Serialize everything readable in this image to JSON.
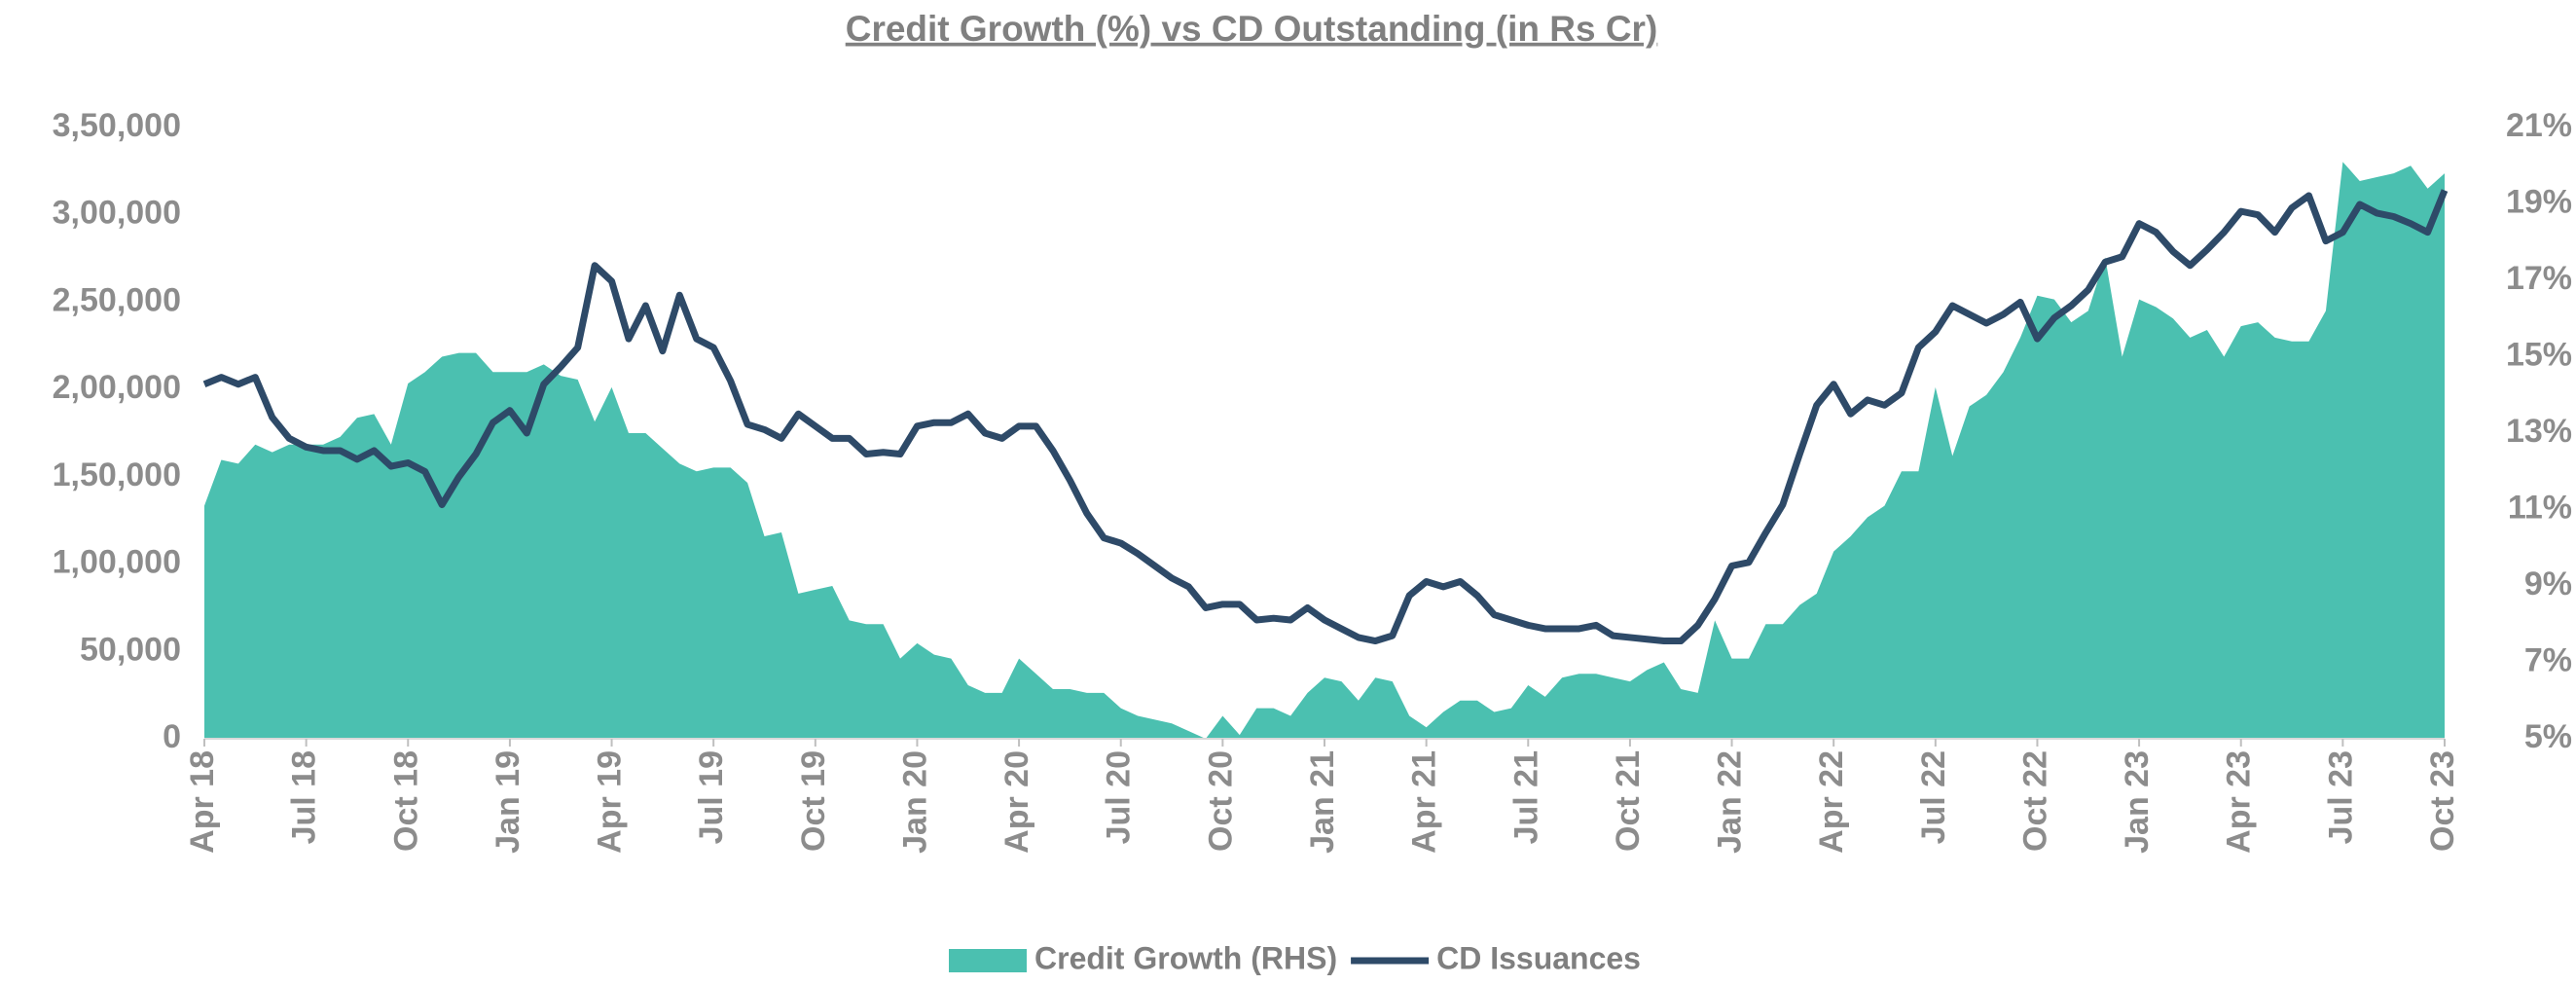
{
  "chart_data": {
    "type": "combo",
    "title": "Credit Growth (%) vs CD Outstanding (in Rs Cr)",
    "categories": [
      "Apr 18",
      null,
      null,
      null,
      null,
      null,
      "Jul 18",
      null,
      null,
      null,
      null,
      null,
      "Oct 18",
      null,
      null,
      null,
      null,
      null,
      "Jan 19",
      null,
      null,
      null,
      null,
      null,
      "Apr 19",
      null,
      null,
      null,
      null,
      null,
      "Jul 19",
      null,
      null,
      null,
      null,
      null,
      "Oct 19",
      null,
      null,
      null,
      null,
      null,
      "Jan 20",
      null,
      null,
      null,
      null,
      null,
      "Apr 20",
      null,
      null,
      null,
      null,
      null,
      "Jul 20",
      null,
      null,
      null,
      null,
      null,
      "Oct 20",
      null,
      null,
      null,
      null,
      null,
      "Jan 21",
      null,
      null,
      null,
      null,
      null,
      "Apr 21",
      null,
      null,
      null,
      null,
      null,
      "Jul 21",
      null,
      null,
      null,
      null,
      null,
      "Oct 21",
      null,
      null,
      null,
      null,
      null,
      "Jan 22",
      null,
      null,
      null,
      null,
      null,
      "Apr 22",
      null,
      null,
      null,
      null,
      null,
      "Jul 22",
      null,
      null,
      null,
      null,
      null,
      "Oct 22",
      null,
      null,
      null,
      null,
      null,
      "Jan 23",
      null,
      null,
      null,
      null,
      null,
      "Apr 23",
      null,
      null,
      null,
      null,
      null,
      "Jul 23",
      null,
      null,
      null,
      null,
      null,
      "Oct 23"
    ],
    "series": [
      {
        "name": "Credit Growth (RHS)",
        "type": "area",
        "axis": "y2",
        "color": "#4bc0b0",
        "values": [
          11.1,
          12.3,
          12.2,
          12.7,
          12.5,
          12.7,
          12.7,
          12.7,
          12.9,
          13.4,
          13.5,
          12.7,
          14.3,
          14.6,
          15.0,
          15.1,
          15.1,
          14.6,
          14.6,
          14.6,
          14.8,
          14.5,
          14.4,
          13.3,
          14.2,
          13.0,
          13.0,
          12.6,
          12.2,
          12.0,
          12.1,
          12.1,
          11.7,
          10.3,
          10.4,
          8.8,
          8.9,
          9.0,
          8.1,
          8.0,
          8.0,
          7.1,
          7.5,
          7.2,
          7.1,
          6.4,
          6.2,
          6.2,
          7.1,
          6.7,
          6.3,
          6.3,
          6.2,
          6.2,
          5.8,
          5.6,
          5.5,
          5.4,
          5.2,
          5.0,
          5.6,
          5.1,
          5.8,
          5.8,
          5.6,
          6.2,
          6.6,
          6.5,
          6.0,
          6.6,
          6.5,
          5.6,
          5.3,
          5.7,
          6.0,
          6.0,
          5.7,
          5.8,
          6.4,
          6.1,
          6.6,
          6.7,
          6.7,
          6.6,
          6.5,
          6.8,
          7.0,
          6.3,
          6.2,
          8.1,
          7.1,
          7.1,
          8.0,
          8.0,
          8.5,
          8.8,
          9.9,
          10.3,
          10.8,
          11.1,
          12.0,
          12.0,
          14.2,
          12.4,
          13.7,
          14.0,
          14.6,
          15.5,
          16.6,
          16.5,
          15.9,
          16.2,
          17.6,
          15.0,
          16.5,
          16.3,
          16.0,
          15.5,
          15.7,
          15.0,
          15.8,
          15.9,
          15.5,
          15.4,
          15.4,
          16.2,
          20.1,
          19.6,
          19.7,
          19.8,
          20.0,
          19.4,
          19.8
        ]
      },
      {
        "name": "CD Issuances",
        "type": "line",
        "axis": "y",
        "color": "#2e4a68",
        "values": [
          203000,
          207000,
          203000,
          207000,
          184000,
          172000,
          167000,
          165000,
          165000,
          160000,
          165000,
          156000,
          158000,
          153000,
          134000,
          150000,
          163000,
          181000,
          188000,
          175000,
          203000,
          213000,
          224000,
          271000,
          262000,
          229000,
          248000,
          222000,
          254000,
          229000,
          224000,
          205000,
          180000,
          177000,
          172000,
          186000,
          179000,
          172000,
          172000,
          163000,
          164000,
          163000,
          179000,
          181000,
          181000,
          186000,
          175000,
          172000,
          179000,
          179000,
          165000,
          148000,
          129000,
          115000,
          112000,
          106000,
          99000,
          92000,
          87000,
          75000,
          77000,
          77000,
          68000,
          69000,
          68000,
          75000,
          68000,
          63000,
          58000,
          56000,
          59000,
          82000,
          90000,
          87000,
          90000,
          82000,
          71000,
          68000,
          65000,
          63000,
          63000,
          63000,
          65000,
          59000,
          58000,
          57000,
          56000,
          56000,
          65000,
          80000,
          99000,
          101000,
          118000,
          134000,
          163000,
          191000,
          203000,
          186000,
          194000,
          191000,
          198000,
          224000,
          233000,
          248000,
          243000,
          238000,
          243000,
          250000,
          229000,
          241000,
          248000,
          257000,
          273000,
          276000,
          295000,
          290000,
          279000,
          271000,
          280000,
          290000,
          302000,
          300000,
          290000,
          304000,
          311000,
          285000,
          290000,
          306000,
          301000,
          299000,
          295000,
          290000,
          314000
        ]
      }
    ],
    "ylim": [
      0,
      350000
    ],
    "yticks": [
      0,
      {
        "value": 50000,
        "label": "50,000"
      },
      {
        "value": 100000,
        "label": "1,00,000"
      },
      {
        "value": 150000,
        "label": "1,50,000"
      },
      {
        "value": 200000,
        "label": "2,00,000"
      },
      {
        "value": 250000,
        "label": "2,50,000"
      },
      {
        "value": 300000,
        "label": "3,00,000"
      },
      {
        "value": 350000,
        "label": "3,50,000"
      }
    ],
    "y2lim": [
      5,
      21
    ],
    "y2ticks": [
      {
        "value": 5,
        "label": "5%"
      },
      {
        "value": 7,
        "label": "7%"
      },
      {
        "value": 9,
        "label": "9%"
      },
      {
        "value": 11,
        "label": "11%"
      },
      {
        "value": 13,
        "label": "13%"
      },
      {
        "value": 15,
        "label": "15%"
      },
      {
        "value": 17,
        "label": "17%"
      },
      {
        "value": 19,
        "label": "19%"
      },
      {
        "value": 21,
        "label": "21%"
      }
    ],
    "grid": false,
    "legend": "bottom"
  }
}
